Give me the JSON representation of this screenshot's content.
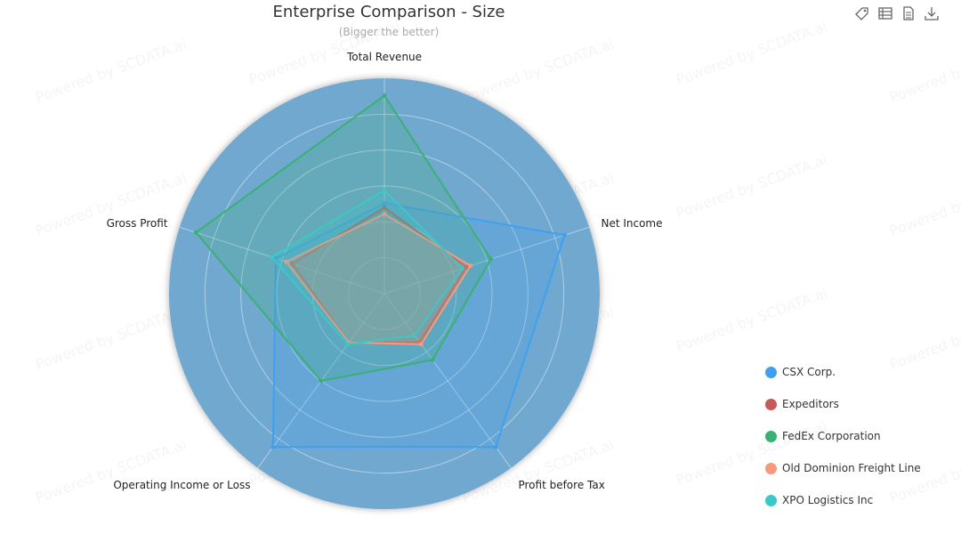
{
  "toolbox": {
    "icons": [
      "tag-icon",
      "data-view-icon",
      "document-icon",
      "download-icon"
    ]
  },
  "watermark": "Powered by SCDATA.ai",
  "chart_data": {
    "type": "radar",
    "title": "Enterprise Comparison - Size",
    "subtitle": "(Bigger the better)",
    "indicators": [
      "Total Revenue",
      "Net Income",
      "Profit before Tax",
      "Operating Income or Loss",
      "Gross Profit"
    ],
    "max": 1.0,
    "grid": true,
    "legend_position": "right",
    "background_color": "#6fa8d0",
    "series": [
      {
        "name": "CSX Corp.",
        "color": "#3fa0f0",
        "values": [
          0.42,
          0.88,
          0.88,
          0.88,
          0.53
        ]
      },
      {
        "name": "Expeditors",
        "color": "#c55a5a",
        "values": [
          0.4,
          0.4,
          0.28,
          0.28,
          0.45
        ]
      },
      {
        "name": "FedEx Corporation",
        "color": "#3cb073",
        "values": [
          0.92,
          0.52,
          0.38,
          0.5,
          0.92
        ]
      },
      {
        "name": "Old Dominion Freight Line",
        "color": "#f49a80",
        "values": [
          0.37,
          0.42,
          0.29,
          0.28,
          0.48
        ]
      },
      {
        "name": "XPO Logistics Inc",
        "color": "#3cc8c6",
        "values": [
          0.48,
          0.38,
          0.24,
          0.29,
          0.55
        ]
      }
    ]
  }
}
